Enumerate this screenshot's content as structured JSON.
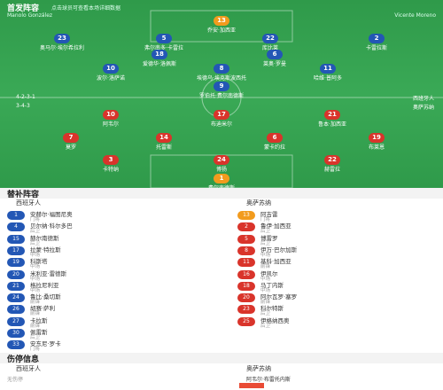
{
  "header": {
    "title": "首发阵容",
    "subtitle": "点击球员可查看本场详细数据",
    "home_coach": "Manolo González",
    "away_coach": "Vicente Moreno"
  },
  "home": {
    "name": "西班牙人",
    "formation": "4-2-3-1",
    "players": [
      {
        "number": "13",
        "name": "乔安·加西亚"
      },
      {
        "number": "23",
        "name": "奥马尔·埃尔希拉利"
      },
      {
        "number": "5",
        "name": "弗尔南多·卡雷拉"
      },
      {
        "number": "22",
        "name": "库比莱"
      },
      {
        "number": "2",
        "name": "卡雷拉斯"
      },
      {
        "number": "18",
        "name": "爱德华·洛佩斯"
      },
      {
        "number": "6",
        "name": "莱奥·罗曼"
      },
      {
        "number": "10",
        "name": "波尔·洛萨诺"
      },
      {
        "number": "8",
        "name": "埃德乌·埃克斯波西托"
      },
      {
        "number": "11",
        "name": "哈维·普阿多"
      },
      {
        "number": "9",
        "name": "罗伯托·费尔南德斯"
      }
    ]
  },
  "away": {
    "name": "奥萨苏纳",
    "formation": "3-4-3",
    "players": [
      {
        "number": "10",
        "name": "阿韦尔"
      },
      {
        "number": "17",
        "name": "布迪米尔"
      },
      {
        "number": "21",
        "name": "鲁本·加西亚"
      },
      {
        "number": "7",
        "name": "莫罗"
      },
      {
        "number": "14",
        "name": "托雷斯"
      },
      {
        "number": "6",
        "name": "蒙卡约拉"
      },
      {
        "number": "19",
        "name": "布莱恩"
      },
      {
        "number": "3",
        "name": "卡特纳"
      },
      {
        "number": "24",
        "name": "博扬"
      },
      {
        "number": "22",
        "name": "赫雷拉"
      },
      {
        "number": "1",
        "name": "费尔南德斯"
      }
    ]
  },
  "subs": {
    "title": "替补阵容",
    "home": [
      {
        "number": "1",
        "name": "安赫尔·福图尼奥",
        "position": "门将"
      },
      {
        "number": "4",
        "name": "贝尔纳·科尔多巴",
        "position": "后卫"
      },
      {
        "number": "15",
        "name": "赫尔南德斯",
        "position": "后卫"
      },
      {
        "number": "17",
        "name": "拉蒙·特拉斯",
        "position": "中场"
      },
      {
        "number": "19",
        "name": "科斯塔",
        "position": "中场"
      },
      {
        "number": "20",
        "name": "米利亚·雷德斯",
        "position": "中场"
      },
      {
        "number": "21",
        "name": "格拉尼利亚",
        "position": "中场"
      },
      {
        "number": "24",
        "name": "鲁比·桑切斯",
        "position": "前锋"
      },
      {
        "number": "26",
        "name": "胡赛·萨利",
        "position": "前锋"
      },
      {
        "number": "27",
        "name": "卡拉斯",
        "position": "前锋"
      },
      {
        "number": "30",
        "name": "佩雷斯",
        "position": "后卫"
      },
      {
        "number": "33",
        "name": "安东尼·罗卡",
        "position": "门将"
      }
    ],
    "away": [
      {
        "number": "13",
        "name": "阿吉雷",
        "position": "门将"
      },
      {
        "number": "2",
        "name": "鲁伊·加西亚",
        "position": "后卫"
      },
      {
        "number": "5",
        "name": "博雷罗",
        "position": "后卫"
      },
      {
        "number": "8",
        "name": "伊万·巴尔加斯",
        "position": "中场"
      },
      {
        "number": "11",
        "name": "基科·加西亚",
        "position": "前锋"
      },
      {
        "number": "16",
        "name": "伊凯尔",
        "position": "中场"
      },
      {
        "number": "18",
        "name": "马丁内斯",
        "position": "中场"
      },
      {
        "number": "20",
        "name": "阿尔瓦罗·塞罗",
        "position": "前锋"
      },
      {
        "number": "23",
        "name": "科尔特斯",
        "position": "后卫"
      },
      {
        "number": "25",
        "name": "伊格纳西奥",
        "position": "后卫"
      }
    ]
  },
  "injuries": {
    "title": "伤停信息",
    "home_name": "西班牙人",
    "home_note": "无伤停",
    "away_name": "奥萨苏纳",
    "away_player": "阿韦尔·布雷托内斯"
  }
}
